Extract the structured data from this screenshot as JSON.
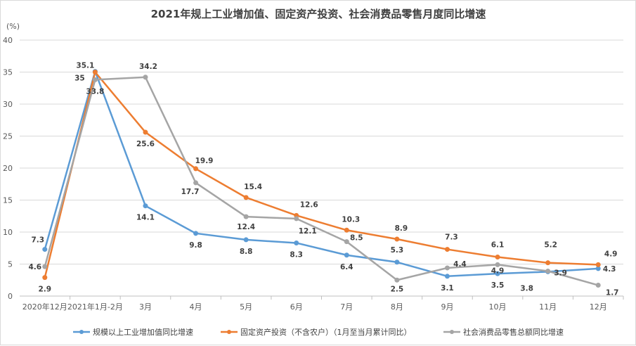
{
  "chart_data": {
    "type": "line",
    "title": "2021年规上工业增加值、固定资产投资、社会消费品零售月度同比增速",
    "ylabel": "(%)",
    "xlabel": "",
    "ylim": [
      0,
      40
    ],
    "yticks": [
      0,
      5,
      10,
      15,
      20,
      25,
      30,
      35,
      40
    ],
    "grid": true,
    "legend_position": "bottom",
    "categories": [
      "2020年12月",
      "2021年1月-2月",
      "3月",
      "4月",
      "5月",
      "6月",
      "7月",
      "8月",
      "9月",
      "10月",
      "11月",
      "12月"
    ],
    "series": [
      {
        "name": "规模以上工业增加值同比增速",
        "color": "#5b9bd5",
        "values": [
          7.3,
          35.1,
          14.1,
          9.8,
          8.8,
          8.3,
          6.4,
          5.3,
          3.1,
          3.5,
          3.8,
          4.3
        ]
      },
      {
        "name": "固定资产投资（不含农户）（1月至当月累计同比）",
        "color": "#ed7d31",
        "values": [
          2.9,
          35,
          25.6,
          19.9,
          15.4,
          12.6,
          10.3,
          8.9,
          7.3,
          6.1,
          5.2,
          4.9
        ]
      },
      {
        "name": "社会消费品零售总额同比增速",
        "color": "#a5a5a5",
        "values": [
          4.6,
          33.8,
          34.2,
          17.7,
          12.4,
          12.1,
          8.5,
          2.5,
          4.4,
          4.9,
          3.9,
          1.7
        ]
      }
    ]
  }
}
